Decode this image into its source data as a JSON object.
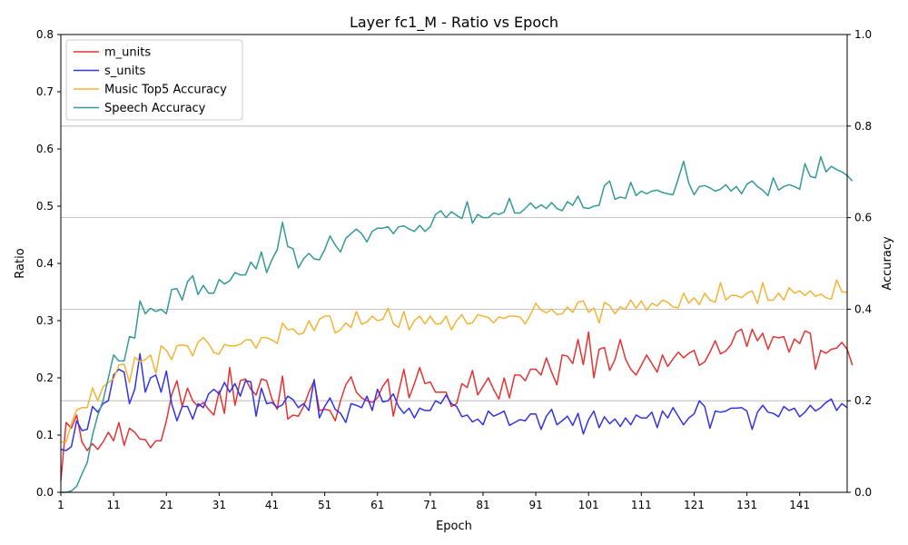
{
  "chart_data": {
    "type": "line",
    "title": "Layer fc1_M - Ratio vs Epoch",
    "xlabel": "Epoch",
    "ylabel_left": "Ratio",
    "ylabel_right": "Accuracy",
    "xlim": [
      1,
      150
    ],
    "ylim_left": [
      0,
      0.8
    ],
    "ylim_right": [
      0,
      1.0
    ],
    "x_ticks": [
      1,
      11,
      21,
      31,
      41,
      51,
      61,
      71,
      81,
      91,
      101,
      111,
      121,
      131,
      141
    ],
    "y_ticks_left": [
      "0.0",
      "0.1",
      "0.2",
      "0.3",
      "0.4",
      "0.5",
      "0.6",
      "0.7",
      "0.8"
    ],
    "y_ticks_right": [
      "0.0",
      "0.2",
      "0.4",
      "0.6",
      "0.8",
      "1.0"
    ],
    "grid": "horizontal at right-axis ticks",
    "legend_position": "top-left",
    "x_start": 1,
    "series": [
      {
        "name": "m_units",
        "axis": "left",
        "color": "#e83232",
        "values": [
          0.02,
          0.122,
          0.112,
          0.135,
          0.088,
          0.073,
          0.085,
          0.075,
          0.088,
          0.105,
          0.09,
          0.122,
          0.082,
          0.112,
          0.105,
          0.093,
          0.092,
          0.078,
          0.09,
          0.09,
          0.125,
          0.17,
          0.195,
          0.15,
          0.182,
          0.16,
          0.15,
          0.157,
          0.145,
          0.135,
          0.177,
          0.138,
          0.218,
          0.152,
          0.195,
          0.198,
          0.18,
          0.17,
          0.198,
          0.195,
          0.163,
          0.145,
          0.203,
          0.128,
          0.135,
          0.133,
          0.15,
          0.175,
          0.195,
          0.143,
          0.145,
          0.143,
          0.125,
          0.16,
          0.188,
          0.202,
          0.175,
          0.165,
          0.16,
          0.157,
          0.165,
          0.185,
          0.198,
          0.133,
          0.175,
          0.215,
          0.165,
          0.19,
          0.218,
          0.19,
          0.193,
          0.175,
          0.175,
          0.175,
          0.15,
          0.155,
          0.19,
          0.183,
          0.213,
          0.17,
          0.185,
          0.2,
          0.18,
          0.163,
          0.2,
          0.165,
          0.205,
          0.205,
          0.195,
          0.215,
          0.215,
          0.205,
          0.235,
          0.21,
          0.188,
          0.24,
          0.238,
          0.225,
          0.267,
          0.223,
          0.28,
          0.2,
          0.25,
          0.253,
          0.213,
          0.232,
          0.267,
          0.233,
          0.215,
          0.205,
          0.222,
          0.24,
          0.225,
          0.21,
          0.24,
          0.22,
          0.233,
          0.245,
          0.235,
          0.243,
          0.248,
          0.222,
          0.228,
          0.245,
          0.265,
          0.242,
          0.247,
          0.258,
          0.28,
          0.285,
          0.255,
          0.285,
          0.265,
          0.278,
          0.25,
          0.272,
          0.27,
          0.272,
          0.245,
          0.268,
          0.26,
          0.282,
          0.278,
          0.215,
          0.248,
          0.243,
          0.25,
          0.252,
          0.262,
          0.25,
          0.222
        ]
      },
      {
        "name": "s_units",
        "axis": "left",
        "color": "#3232e8",
        "values": [
          0.075,
          0.073,
          0.08,
          0.125,
          0.108,
          0.11,
          0.15,
          0.14,
          0.155,
          0.16,
          0.205,
          0.215,
          0.21,
          0.155,
          0.18,
          0.242,
          0.175,
          0.2,
          0.205,
          0.175,
          0.212,
          0.155,
          0.125,
          0.15,
          0.15,
          0.128,
          0.155,
          0.148,
          0.172,
          0.18,
          0.172,
          0.192,
          0.175,
          0.19,
          0.168,
          0.195,
          0.193,
          0.133,
          0.182,
          0.155,
          0.157,
          0.148,
          0.153,
          0.168,
          0.162,
          0.148,
          0.155,
          0.143,
          0.197,
          0.13,
          0.15,
          0.165,
          0.145,
          0.138,
          0.122,
          0.155,
          0.152,
          0.148,
          0.168,
          0.143,
          0.18,
          0.158,
          0.16,
          0.172,
          0.15,
          0.138,
          0.147,
          0.13,
          0.147,
          0.143,
          0.143,
          0.16,
          0.155,
          0.17,
          0.155,
          0.15,
          0.132,
          0.135,
          0.123,
          0.128,
          0.118,
          0.142,
          0.133,
          0.137,
          0.142,
          0.117,
          0.122,
          0.127,
          0.125,
          0.137,
          0.137,
          0.11,
          0.133,
          0.145,
          0.118,
          0.125,
          0.133,
          0.117,
          0.138,
          0.102,
          0.127,
          0.142,
          0.113,
          0.132,
          0.12,
          0.128,
          0.115,
          0.13,
          0.118,
          0.135,
          0.13,
          0.13,
          0.14,
          0.113,
          0.142,
          0.13,
          0.148,
          0.133,
          0.118,
          0.13,
          0.137,
          0.16,
          0.15,
          0.112,
          0.142,
          0.14,
          0.142,
          0.147,
          0.147,
          0.148,
          0.142,
          0.11,
          0.14,
          0.152,
          0.14,
          0.138,
          0.132,
          0.15,
          0.143,
          0.147,
          0.132,
          0.14,
          0.152,
          0.142,
          0.148,
          0.157,
          0.163,
          0.143,
          0.155,
          0.148
        ]
      },
      {
        "name": "Music Top5 Accuracy",
        "axis": "right",
        "color": "#f5b335",
        "values": [
          0.11,
          0.11,
          0.15,
          0.18,
          0.185,
          0.185,
          0.228,
          0.2,
          0.23,
          0.24,
          0.248,
          0.278,
          0.28,
          0.24,
          0.295,
          0.285,
          0.29,
          0.3,
          0.26,
          0.32,
          0.31,
          0.29,
          0.32,
          0.322,
          0.32,
          0.298,
          0.328,
          0.338,
          0.325,
          0.305,
          0.302,
          0.323,
          0.32,
          0.32,
          0.323,
          0.333,
          0.333,
          0.315,
          0.338,
          0.338,
          0.333,
          0.325,
          0.37,
          0.355,
          0.357,
          0.345,
          0.348,
          0.375,
          0.353,
          0.378,
          0.385,
          0.385,
          0.348,
          0.355,
          0.37,
          0.36,
          0.395,
          0.367,
          0.372,
          0.385,
          0.375,
          0.378,
          0.402,
          0.368,
          0.36,
          0.395,
          0.355,
          0.375,
          0.385,
          0.368,
          0.385,
          0.368,
          0.368,
          0.385,
          0.355,
          0.375,
          0.388,
          0.368,
          0.37,
          0.388,
          0.385,
          0.382,
          0.37,
          0.383,
          0.38,
          0.385,
          0.385,
          0.383,
          0.368,
          0.388,
          0.413,
          0.398,
          0.392,
          0.4,
          0.388,
          0.39,
          0.405,
          0.393,
          0.415,
          0.418,
          0.393,
          0.403,
          0.37,
          0.415,
          0.408,
          0.39,
          0.405,
          0.4,
          0.42,
          0.402,
          0.418,
          0.398,
          0.413,
          0.407,
          0.42,
          0.415,
          0.405,
          0.403,
          0.435,
          0.413,
          0.425,
          0.41,
          0.435,
          0.42,
          0.415,
          0.458,
          0.42,
          0.43,
          0.43,
          0.425,
          0.435,
          0.44,
          0.412,
          0.458,
          0.42,
          0.42,
          0.435,
          0.42,
          0.447,
          0.435,
          0.44,
          0.43,
          0.44,
          0.428,
          0.433,
          0.425,
          0.422,
          0.464,
          0.438,
          0.437
        ]
      },
      {
        "name": "Speech Accuracy",
        "axis": "right",
        "color": "#339999",
        "values": [
          0.0,
          0.0,
          0.003,
          0.013,
          0.04,
          0.065,
          0.125,
          0.168,
          0.2,
          0.25,
          0.3,
          0.287,
          0.287,
          0.34,
          0.337,
          0.418,
          0.39,
          0.402,
          0.395,
          0.4,
          0.39,
          0.443,
          0.445,
          0.42,
          0.46,
          0.473,
          0.432,
          0.452,
          0.435,
          0.435,
          0.465,
          0.455,
          0.462,
          0.48,
          0.475,
          0.475,
          0.503,
          0.488,
          0.525,
          0.48,
          0.508,
          0.53,
          0.59,
          0.537,
          0.532,
          0.49,
          0.51,
          0.522,
          0.51,
          0.508,
          0.53,
          0.56,
          0.54,
          0.525,
          0.555,
          0.565,
          0.575,
          0.565,
          0.547,
          0.57,
          0.577,
          0.577,
          0.58,
          0.565,
          0.58,
          0.582,
          0.575,
          0.57,
          0.583,
          0.57,
          0.58,
          0.607,
          0.615,
          0.6,
          0.613,
          0.605,
          0.598,
          0.635,
          0.588,
          0.607,
          0.6,
          0.6,
          0.61,
          0.607,
          0.612,
          0.642,
          0.61,
          0.61,
          0.62,
          0.632,
          0.62,
          0.628,
          0.62,
          0.633,
          0.62,
          0.615,
          0.635,
          0.627,
          0.647,
          0.622,
          0.62,
          0.625,
          0.627,
          0.67,
          0.68,
          0.64,
          0.645,
          0.642,
          0.677,
          0.648,
          0.658,
          0.652,
          0.658,
          0.66,
          0.655,
          0.652,
          0.65,
          0.685,
          0.723,
          0.675,
          0.65,
          0.668,
          0.67,
          0.665,
          0.658,
          0.662,
          0.672,
          0.658,
          0.668,
          0.652,
          0.673,
          0.68,
          0.668,
          0.66,
          0.648,
          0.687,
          0.66,
          0.668,
          0.672,
          0.668,
          0.662,
          0.718,
          0.69,
          0.687,
          0.733,
          0.7,
          0.712,
          0.705,
          0.7,
          0.692,
          0.68
        ]
      }
    ]
  }
}
